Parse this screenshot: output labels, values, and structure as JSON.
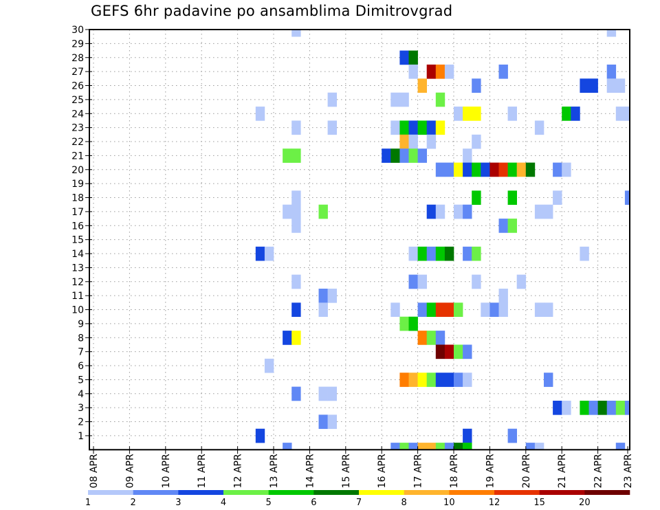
{
  "chart_data": {
    "type": "heatmap",
    "title": "GEFS 6hr padavine po ansamblima Dimitrovgrad",
    "xlabel": "",
    "ylabel": "",
    "x_unit": "6-hour step from 08 APR 00Z",
    "x_tick_labels": [
      "08 APR",
      "09 APR",
      "10 APR",
      "11 APR",
      "12 APR",
      "13 APR",
      "14 APR",
      "15 APR",
      "16 APR",
      "17 APR",
      "18 APR",
      "19 APR",
      "20 APR",
      "21 APR",
      "22 APR",
      "23 APR"
    ],
    "xlim": [
      0,
      60
    ],
    "y_tick_labels": [
      "1",
      "2",
      "3",
      "4",
      "5",
      "6",
      "7",
      "8",
      "9",
      "10",
      "11",
      "12",
      "13",
      "14",
      "15",
      "16",
      "17",
      "18",
      "19",
      "20",
      "21",
      "22",
      "23",
      "24",
      "25",
      "26",
      "27",
      "28",
      "29",
      "30"
    ],
    "ylim": [
      0,
      30
    ],
    "grid": true,
    "colorbar": {
      "placement": "bottom",
      "levels": [
        "1",
        "2",
        "3",
        "4",
        "5",
        "6",
        "7",
        "8",
        "10",
        "12",
        "15",
        "20"
      ],
      "bounds": [
        1,
        2,
        3,
        4,
        5,
        6,
        7,
        8,
        10,
        12,
        15,
        20,
        25
      ],
      "colors": [
        "#b4c8fa",
        "#6088f5",
        "#1446e0",
        "#6cf046",
        "#00c800",
        "#007800",
        "#ffff00",
        "#ffb42d",
        "#ff7d00",
        "#e63200",
        "#aa0000",
        "#6e0000"
      ]
    },
    "cells_format": [
      "time_step",
      "member",
      "precip_mm"
    ],
    "cells": [
      [
        22,
        30,
        1.5
      ],
      [
        57,
        30,
        1.5
      ],
      [
        34,
        28,
        3.5
      ],
      [
        35,
        28,
        6.5
      ],
      [
        35,
        27,
        1.5
      ],
      [
        37,
        27,
        17.5
      ],
      [
        38,
        27,
        11
      ],
      [
        39,
        27,
        1.5
      ],
      [
        45,
        27,
        2.5
      ],
      [
        57,
        27,
        2.5
      ],
      [
        36,
        26,
        9
      ],
      [
        42,
        26,
        2.5
      ],
      [
        54,
        26,
        3.5
      ],
      [
        55,
        26,
        3.5
      ],
      [
        57,
        26,
        1.5
      ],
      [
        58,
        26,
        1.5
      ],
      [
        26,
        25,
        1.5
      ],
      [
        33,
        25,
        1.5
      ],
      [
        34,
        25,
        1.5
      ],
      [
        38,
        25,
        4.5
      ],
      [
        18,
        24,
        1.5
      ],
      [
        40,
        24,
        1.5
      ],
      [
        41,
        24,
        7.5
      ],
      [
        42,
        24,
        7.5
      ],
      [
        46,
        24,
        1.5
      ],
      [
        52,
        24,
        5.5
      ],
      [
        53,
        24,
        3.5
      ],
      [
        58,
        24,
        1.5
      ],
      [
        59,
        24,
        1.5
      ],
      [
        22,
        23,
        1.5
      ],
      [
        26,
        23,
        1.5
      ],
      [
        33,
        23,
        1.5
      ],
      [
        34,
        23,
        5.5
      ],
      [
        35,
        23,
        3.5
      ],
      [
        36,
        23,
        5.5
      ],
      [
        37,
        23,
        3.5
      ],
      [
        38,
        23,
        7.5
      ],
      [
        49,
        23,
        1.5
      ],
      [
        34,
        22,
        9
      ],
      [
        35,
        22,
        1.5
      ],
      [
        37,
        22,
        1.5
      ],
      [
        42,
        22,
        1.5
      ],
      [
        21,
        21,
        4.5
      ],
      [
        22,
        21,
        4.5
      ],
      [
        32,
        21,
        3.5
      ],
      [
        33,
        21,
        6.5
      ],
      [
        34,
        21,
        2.5
      ],
      [
        35,
        21,
        4.5
      ],
      [
        36,
        21,
        2.5
      ],
      [
        41,
        21,
        1.5
      ],
      [
        38,
        20,
        2.5
      ],
      [
        39,
        20,
        2.5
      ],
      [
        40,
        20,
        7.5
      ],
      [
        41,
        20,
        3.5
      ],
      [
        42,
        20,
        5.5
      ],
      [
        43,
        20,
        3.5
      ],
      [
        44,
        20,
        17.5
      ],
      [
        45,
        20,
        13.5
      ],
      [
        46,
        20,
        5.5
      ],
      [
        47,
        20,
        9
      ],
      [
        48,
        20,
        6.5
      ],
      [
        51,
        20,
        2.5
      ],
      [
        52,
        20,
        1.5
      ],
      [
        22,
        18,
        1.5
      ],
      [
        42,
        18,
        5.5
      ],
      [
        46,
        18,
        5.5
      ],
      [
        51,
        18,
        1.5
      ],
      [
        59,
        18,
        2.5
      ],
      [
        21,
        17,
        1.5
      ],
      [
        22,
        17,
        1.5
      ],
      [
        25,
        17,
        4.5
      ],
      [
        37,
        17,
        3.5
      ],
      [
        38,
        17,
        1.5
      ],
      [
        40,
        17,
        1.5
      ],
      [
        41,
        17,
        2.5
      ],
      [
        49,
        17,
        1.5
      ],
      [
        50,
        17,
        1.5
      ],
      [
        22,
        16,
        1.5
      ],
      [
        45,
        16,
        2.5
      ],
      [
        46,
        16,
        4.5
      ],
      [
        18,
        14,
        3.5
      ],
      [
        19,
        14,
        1.5
      ],
      [
        35,
        14,
        1.5
      ],
      [
        36,
        14,
        5.5
      ],
      [
        37,
        14,
        2.5
      ],
      [
        38,
        14,
        5.5
      ],
      [
        39,
        14,
        6.5
      ],
      [
        41,
        14,
        2.5
      ],
      [
        42,
        14,
        4.5
      ],
      [
        54,
        14,
        1.5
      ],
      [
        22,
        12,
        1.5
      ],
      [
        35,
        12,
        2.5
      ],
      [
        36,
        12,
        1.5
      ],
      [
        42,
        12,
        1.5
      ],
      [
        47,
        12,
        1.5
      ],
      [
        25,
        11,
        2.5
      ],
      [
        26,
        11,
        1.5
      ],
      [
        45,
        11,
        1.5
      ],
      [
        22,
        10,
        3.5
      ],
      [
        25,
        10,
        1.5
      ],
      [
        33,
        10,
        1.5
      ],
      [
        36,
        10,
        2.5
      ],
      [
        37,
        10,
        5.5
      ],
      [
        38,
        10,
        13.5
      ],
      [
        39,
        10,
        13.5
      ],
      [
        40,
        10,
        4.5
      ],
      [
        43,
        10,
        1.5
      ],
      [
        44,
        10,
        2.5
      ],
      [
        45,
        10,
        1.5
      ],
      [
        49,
        10,
        1.5
      ],
      [
        50,
        10,
        1.5
      ],
      [
        34,
        9,
        4.5
      ],
      [
        35,
        9,
        5.5
      ],
      [
        21,
        8,
        3.5
      ],
      [
        22,
        8,
        7.5
      ],
      [
        36,
        8,
        11
      ],
      [
        37,
        8,
        4.5
      ],
      [
        38,
        8,
        2.5
      ],
      [
        38,
        7,
        22
      ],
      [
        39,
        7,
        17.5
      ],
      [
        40,
        7,
        4.5
      ],
      [
        41,
        7,
        2.5
      ],
      [
        19,
        6,
        1.5
      ],
      [
        34,
        5,
        11
      ],
      [
        35,
        5,
        9
      ],
      [
        36,
        5,
        7.5
      ],
      [
        37,
        5,
        4.5
      ],
      [
        38,
        5,
        3.5
      ],
      [
        39,
        5,
        3.5
      ],
      [
        40,
        5,
        2.5
      ],
      [
        41,
        5,
        1.5
      ],
      [
        50,
        5,
        2.5
      ],
      [
        22,
        4,
        2.5
      ],
      [
        25,
        4,
        1.5
      ],
      [
        26,
        4,
        1.5
      ],
      [
        51,
        3,
        3.5
      ],
      [
        52,
        3,
        1.5
      ],
      [
        54,
        3,
        5.5
      ],
      [
        55,
        3,
        2.5
      ],
      [
        56,
        3,
        6.5
      ],
      [
        57,
        3,
        2.5
      ],
      [
        58,
        3,
        4.5
      ],
      [
        59,
        3,
        2.5
      ],
      [
        25,
        2,
        2.5
      ],
      [
        26,
        2,
        1.5
      ],
      [
        18,
        1,
        3.5
      ],
      [
        41,
        1,
        3.5
      ],
      [
        46,
        1,
        2.5
      ],
      [
        21,
        0,
        2.5
      ],
      [
        33,
        0,
        2.5
      ],
      [
        34,
        0,
        4.5
      ],
      [
        35,
        0,
        2.5
      ],
      [
        36,
        0,
        9
      ],
      [
        37,
        0,
        9
      ],
      [
        38,
        0,
        4.5
      ],
      [
        39,
        0,
        2.5
      ],
      [
        40,
        0,
        6.5
      ],
      [
        41,
        0,
        5.5
      ],
      [
        48,
        0,
        2.5
      ],
      [
        49,
        0,
        1.5
      ],
      [
        58,
        0,
        2.5
      ]
    ]
  }
}
